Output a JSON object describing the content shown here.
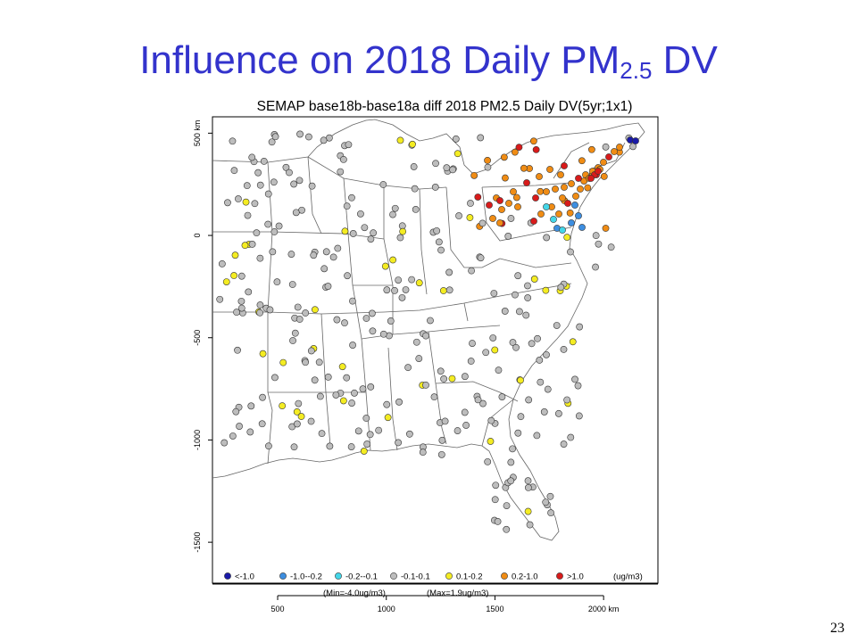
{
  "slide": {
    "title_main": "Influence on 2018 Daily PM",
    "title_sub": "2.5",
    "title_suffix": " DV",
    "page_number": "23"
  },
  "map": {
    "title": "SEMAP base18b-base18a diff 2018 PM2.5 Daily DV(5yr;1x1)",
    "x_ticks": [
      {
        "value": 500,
        "label": "500"
      },
      {
        "value": 1000,
        "label": "1000"
      },
      {
        "value": 1500,
        "label": "1500"
      },
      {
        "value": 2000,
        "label": "2000 km"
      }
    ],
    "y_ticks": [
      {
        "value": 500,
        "label": "500 km"
      },
      {
        "value": 0,
        "label": "0"
      },
      {
        "value": -500,
        "label": "-500"
      },
      {
        "value": -1000,
        "label": "-1000"
      },
      {
        "value": -1500,
        "label": "-1500"
      }
    ],
    "x_range": [
      200,
      2250
    ],
    "y_range": [
      -1700,
      580
    ],
    "legend": {
      "items": [
        {
          "label": "<-1.0",
          "color": "#1a1aa8"
        },
        {
          "label": "-1.0--0.2",
          "color": "#3d8ee0"
        },
        {
          "label": "-0.2--0.1",
          "color": "#44d6e8"
        },
        {
          "label": "-0.1-0.1",
          "color": "#bdbdbd"
        },
        {
          "label": "0.1-0.2",
          "color": "#f4ec22"
        },
        {
          "label": "0.2-1.0",
          "color": "#f08c14"
        },
        {
          "label": ">1.0",
          "color": "#d81b1b"
        }
      ],
      "unit": "(ug/m3)",
      "min_label": "(Min=-4.0ug/m3)",
      "max_label": "(Max=1.9ug/m3)"
    }
  }
}
